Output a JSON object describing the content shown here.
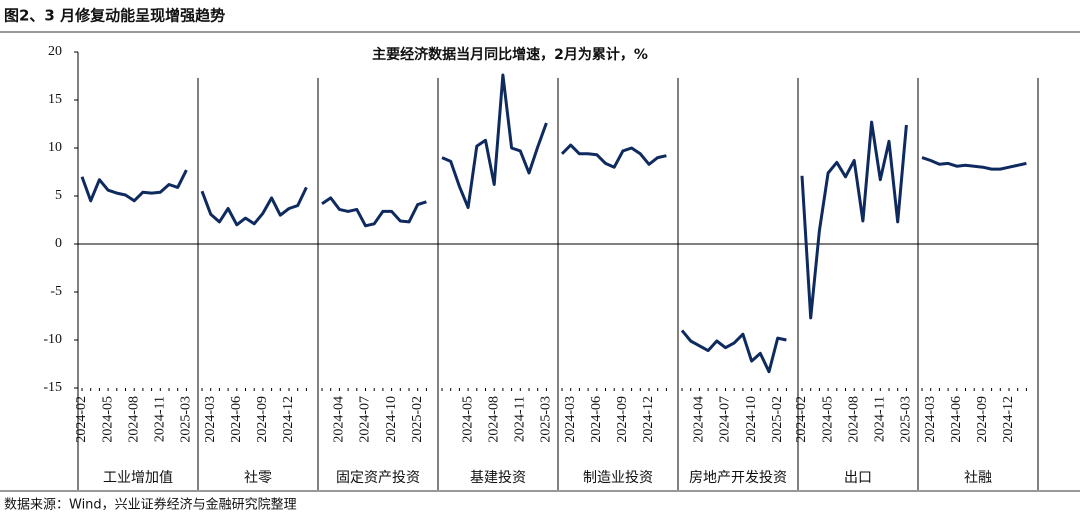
{
  "chart_data": {
    "type": "line",
    "figure_title": "图2、3 月修复动能呈现增强趋势",
    "title": "主要经济数据当月同比增速，2月为累计，%",
    "source": "数据来源：Wind，兴业证券经济与金融研究院整理",
    "color": "#0e2a5f",
    "ylim": [
      -15,
      20
    ],
    "yticks": [
      -15,
      -10,
      -5,
      0,
      5,
      10,
      15,
      20
    ],
    "groups": [
      {
        "name": "工业增加值",
        "categories": [
          "2024-02",
          null,
          null,
          "2024-05",
          null,
          null,
          "2024-08",
          null,
          null,
          "2024-11",
          null,
          null,
          "2025-03"
        ],
        "values": [
          7.0,
          4.5,
          6.7,
          5.6,
          5.3,
          5.1,
          4.5,
          5.4,
          5.3,
          5.4,
          6.2,
          5.9,
          7.7
        ]
      },
      {
        "name": "社零",
        "categories": [
          null,
          "2024-03",
          null,
          null,
          "2024-06",
          null,
          null,
          "2024-09",
          null,
          null,
          "2024-12",
          null,
          null
        ],
        "values": [
          5.5,
          3.1,
          2.3,
          3.7,
          2.0,
          2.7,
          2.1,
          3.2,
          4.8,
          3.0,
          3.7,
          4.0,
          5.9
        ]
      },
      {
        "name": "固定资产投资",
        "categories": [
          null,
          null,
          "2024-04",
          null,
          null,
          "2024-07",
          null,
          null,
          "2024-10",
          null,
          null,
          "2025-02",
          null
        ],
        "values": [
          4.2,
          4.8,
          3.6,
          3.4,
          3.6,
          1.9,
          2.1,
          3.4,
          3.4,
          2.4,
          2.3,
          4.1,
          4.4
        ]
      },
      {
        "name": "基建投资",
        "categories": [
          null,
          null,
          null,
          "2024-05",
          null,
          null,
          "2024-08",
          null,
          null,
          "2024-11",
          null,
          null,
          "2025-03"
        ],
        "values": [
          9.0,
          8.6,
          6.0,
          3.8,
          10.2,
          10.8,
          6.2,
          17.6,
          10.0,
          9.7,
          7.4,
          10.1,
          12.6
        ]
      },
      {
        "name": "制造业投资",
        "categories": [
          null,
          "2024-03",
          null,
          null,
          "2024-06",
          null,
          null,
          "2024-09",
          null,
          null,
          "2024-12",
          null,
          null
        ],
        "values": [
          9.4,
          10.3,
          9.4,
          9.4,
          9.3,
          8.4,
          8.0,
          9.7,
          10.0,
          9.4,
          8.3,
          9.0,
          9.2
        ]
      },
      {
        "name": "房地产开发投资",
        "categories": [
          null,
          null,
          "2024-04",
          null,
          null,
          "2024-07",
          null,
          null,
          "2024-10",
          null,
          null,
          "2025-02",
          null
        ],
        "values": [
          -9.0,
          -10.1,
          -10.6,
          -11.1,
          -10.1,
          -10.8,
          -10.3,
          -9.4,
          -12.2,
          -11.4,
          -13.3,
          -9.8,
          -10.0
        ]
      },
      {
        "name": "出口",
        "categories": [
          "2024-02",
          null,
          null,
          "2024-05",
          null,
          null,
          "2024-08",
          null,
          null,
          "2024-11",
          null,
          null,
          "2025-03"
        ],
        "values": [
          7.1,
          -7.7,
          1.4,
          7.4,
          8.5,
          7.0,
          8.7,
          2.4,
          12.7,
          6.7,
          10.7,
          2.3,
          12.4
        ]
      },
      {
        "name": "社融",
        "categories": [
          null,
          "2024-03",
          null,
          null,
          "2024-06",
          null,
          null,
          "2024-09",
          null,
          null,
          "2024-12",
          null,
          null
        ],
        "values": [
          9.0,
          8.7,
          8.3,
          8.4,
          8.1,
          8.2,
          8.1,
          8.0,
          7.8,
          7.8,
          8.0,
          8.2,
          8.4
        ]
      }
    ]
  }
}
